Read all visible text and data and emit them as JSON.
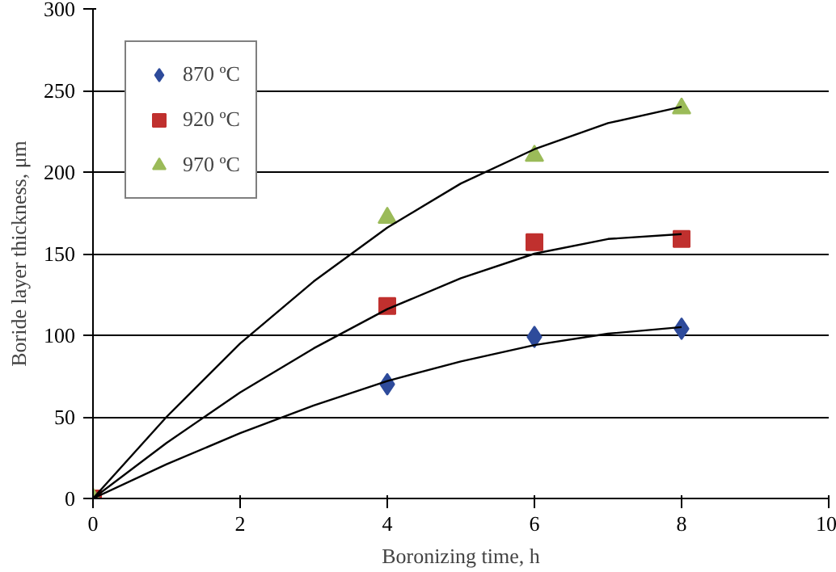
{
  "chart_data": {
    "type": "scatter",
    "xlabel": "Boronizing time, h",
    "ylabel": "Boride layer thickness, μm",
    "xlim": [
      0,
      10
    ],
    "xticks": [
      0,
      2,
      4,
      6,
      8,
      10
    ],
    "ylim": [
      0,
      300
    ],
    "yticks": [
      0,
      50,
      100,
      150,
      200,
      250,
      300
    ],
    "grid": "y",
    "legend": "top left",
    "series": [
      {
        "name": "870 ºC",
        "color": "#2e4b9b",
        "marker": "diamond",
        "x": [
          4,
          6,
          8
        ],
        "values": [
          70,
          99,
          104
        ]
      },
      {
        "name": "920 ºC",
        "color": "#c0302e",
        "marker": "square",
        "x": [
          0,
          4,
          6,
          8
        ],
        "values": [
          0,
          118,
          157,
          159
        ]
      },
      {
        "name": "970 ºC",
        "color": "#9bbb59",
        "marker": "triangle",
        "x": [
          0,
          4,
          6,
          8
        ],
        "values": [
          0,
          172,
          210,
          239
        ]
      },
      {
        "type": "line",
        "color": "#000000",
        "marker": "none",
        "x": [
          0,
          1,
          2,
          3,
          4,
          5,
          6,
          7,
          8
        ],
        "values": [
          0,
          21,
          40,
          57,
          72,
          84,
          94,
          101,
          105
        ]
      },
      {
        "type": "line",
        "color": "#000000",
        "marker": "none",
        "x": [
          0,
          1,
          2,
          3,
          4,
          5,
          6,
          7,
          8
        ],
        "values": [
          0,
          34,
          65,
          92,
          116,
          135,
          150,
          159,
          162
        ]
      },
      {
        "type": "line",
        "color": "#000000",
        "marker": "none",
        "x": [
          0,
          1,
          2,
          3,
          4,
          5,
          6,
          7,
          8
        ],
        "values": [
          0,
          50,
          95,
          133,
          166,
          193,
          214,
          230,
          240
        ]
      }
    ]
  }
}
